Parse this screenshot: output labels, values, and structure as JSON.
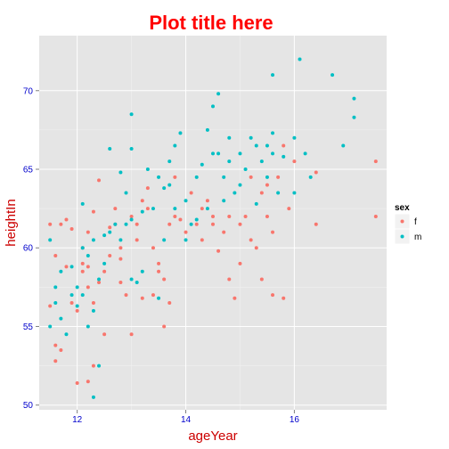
{
  "chart_data": {
    "type": "scatter",
    "title": "Plot title here",
    "xlabel": "ageYear",
    "ylabel": "heightIn",
    "xlim": [
      11.3,
      17.7
    ],
    "ylim": [
      49.7,
      73.5
    ],
    "x_ticks": [
      12,
      14,
      16
    ],
    "y_ticks": [
      50,
      55,
      60,
      65,
      70
    ],
    "x_tick_labels": [
      "12",
      "14",
      "16"
    ],
    "y_tick_labels": [
      "50",
      "55",
      "60",
      "65",
      "70"
    ],
    "grid": true,
    "legend": {
      "title": "sex",
      "position": "right"
    },
    "colors": {
      "f": "#F8766D",
      "m": "#00BFC4",
      "title": "#FF0000",
      "axis_title": "#CC0000",
      "tick_label": "#0000CC",
      "panel_bg": "#E5E5E5",
      "grid": "#FFFFFF"
    },
    "series": [
      {
        "name": "f",
        "points": [
          [
            11.5,
            56.3
          ],
          [
            11.6,
            53.8
          ],
          [
            11.7,
            53.5
          ],
          [
            11.6,
            52.8
          ],
          [
            11.5,
            61.5
          ],
          [
            11.7,
            61.5
          ],
          [
            11.8,
            61.8
          ],
          [
            11.9,
            61.2
          ],
          [
            11.6,
            59.5
          ],
          [
            11.8,
            58.8
          ],
          [
            11.9,
            56.5
          ],
          [
            12.0,
            56.0
          ],
          [
            12.0,
            51.4
          ],
          [
            12.1,
            59.0
          ],
          [
            12.1,
            58.5
          ],
          [
            12.2,
            58.8
          ],
          [
            12.2,
            57.5
          ],
          [
            12.3,
            56.5
          ],
          [
            12.2,
            51.5
          ],
          [
            12.3,
            52.5
          ],
          [
            12.2,
            61.0
          ],
          [
            12.3,
            62.3
          ],
          [
            12.4,
            64.3
          ],
          [
            12.1,
            60.0
          ],
          [
            12.4,
            57.8
          ],
          [
            12.5,
            58.5
          ],
          [
            12.5,
            54.5
          ],
          [
            12.6,
            59.5
          ],
          [
            12.6,
            61.3
          ],
          [
            12.7,
            62.5
          ],
          [
            12.7,
            61.5
          ],
          [
            12.8,
            60.0
          ],
          [
            12.8,
            59.3
          ],
          [
            12.8,
            57.8
          ],
          [
            12.9,
            57.0
          ],
          [
            13.0,
            54.5
          ],
          [
            13.0,
            62.0
          ],
          [
            13.1,
            61.5
          ],
          [
            13.1,
            60.5
          ],
          [
            13.2,
            63.0
          ],
          [
            13.3,
            62.5
          ],
          [
            13.3,
            63.8
          ],
          [
            13.2,
            56.8
          ],
          [
            13.4,
            60.0
          ],
          [
            13.4,
            57.0
          ],
          [
            13.5,
            59.0
          ],
          [
            13.5,
            58.5
          ],
          [
            13.6,
            58.0
          ],
          [
            13.6,
            55.0
          ],
          [
            13.7,
            56.5
          ],
          [
            13.7,
            61.5
          ],
          [
            13.8,
            62.0
          ],
          [
            13.8,
            64.5
          ],
          [
            13.9,
            61.8
          ],
          [
            14.0,
            61.0
          ],
          [
            14.1,
            63.5
          ],
          [
            14.2,
            61.5
          ],
          [
            14.3,
            62.5
          ],
          [
            14.3,
            60.5
          ],
          [
            14.4,
            63.0
          ],
          [
            14.5,
            61.5
          ],
          [
            14.5,
            62.0
          ],
          [
            14.6,
            59.8
          ],
          [
            14.7,
            61.0
          ],
          [
            14.8,
            62.0
          ],
          [
            14.8,
            58.0
          ],
          [
            14.9,
            56.8
          ],
          [
            15.0,
            61.5
          ],
          [
            15.0,
            59.0
          ],
          [
            15.1,
            62.0
          ],
          [
            15.2,
            60.5
          ],
          [
            15.2,
            64.5
          ],
          [
            15.3,
            60.0
          ],
          [
            15.4,
            58.0
          ],
          [
            15.4,
            63.5
          ],
          [
            15.5,
            62.0
          ],
          [
            15.5,
            64.0
          ],
          [
            15.6,
            61.0
          ],
          [
            15.6,
            57.0
          ],
          [
            15.7,
            64.5
          ],
          [
            15.8,
            66.5
          ],
          [
            15.8,
            56.8
          ],
          [
            15.9,
            62.5
          ],
          [
            16.0,
            65.5
          ],
          [
            16.4,
            61.5
          ],
          [
            16.4,
            64.8
          ],
          [
            17.5,
            65.5
          ],
          [
            17.5,
            62.0
          ]
        ]
      },
      {
        "name": "m",
        "points": [
          [
            11.5,
            60.5
          ],
          [
            11.5,
            55.0
          ],
          [
            11.6,
            57.5
          ],
          [
            11.6,
            56.5
          ],
          [
            11.7,
            58.5
          ],
          [
            11.7,
            55.5
          ],
          [
            11.8,
            54.5
          ],
          [
            11.9,
            58.8
          ],
          [
            11.9,
            57.0
          ],
          [
            12.0,
            56.3
          ],
          [
            12.0,
            57.5
          ],
          [
            12.1,
            60.0
          ],
          [
            12.1,
            62.8
          ],
          [
            12.1,
            57.0
          ],
          [
            12.2,
            55.0
          ],
          [
            12.2,
            59.5
          ],
          [
            12.3,
            60.5
          ],
          [
            12.3,
            56.0
          ],
          [
            12.3,
            50.5
          ],
          [
            12.4,
            52.5
          ],
          [
            12.4,
            58.0
          ],
          [
            12.5,
            59.0
          ],
          [
            12.5,
            60.8
          ],
          [
            12.6,
            61.0
          ],
          [
            12.6,
            66.3
          ],
          [
            12.7,
            61.5
          ],
          [
            12.8,
            64.8
          ],
          [
            12.8,
            60.5
          ],
          [
            12.9,
            63.5
          ],
          [
            12.9,
            61.5
          ],
          [
            13.0,
            68.5
          ],
          [
            13.0,
            61.8
          ],
          [
            13.0,
            58.0
          ],
          [
            13.0,
            66.3
          ],
          [
            13.1,
            57.8
          ],
          [
            13.2,
            62.3
          ],
          [
            13.2,
            58.5
          ],
          [
            13.3,
            65.0
          ],
          [
            13.4,
            62.5
          ],
          [
            13.5,
            64.5
          ],
          [
            13.5,
            56.8
          ],
          [
            13.6,
            63.8
          ],
          [
            13.6,
            60.5
          ],
          [
            13.7,
            65.5
          ],
          [
            13.7,
            64.0
          ],
          [
            13.8,
            66.5
          ],
          [
            13.8,
            62.5
          ],
          [
            13.9,
            67.3
          ],
          [
            14.0,
            63.0
          ],
          [
            14.0,
            60.5
          ],
          [
            14.1,
            61.5
          ],
          [
            14.2,
            64.5
          ],
          [
            14.2,
            61.8
          ],
          [
            14.3,
            65.3
          ],
          [
            14.4,
            67.5
          ],
          [
            14.4,
            62.5
          ],
          [
            14.5,
            69.0
          ],
          [
            14.5,
            66.0
          ],
          [
            14.6,
            69.8
          ],
          [
            14.6,
            66.0
          ],
          [
            14.7,
            64.5
          ],
          [
            14.7,
            63.0
          ],
          [
            14.8,
            65.5
          ],
          [
            14.8,
            67.0
          ],
          [
            14.9,
            63.5
          ],
          [
            15.0,
            66.0
          ],
          [
            15.0,
            64.0
          ],
          [
            15.1,
            65.0
          ],
          [
            15.2,
            67.0
          ],
          [
            15.3,
            66.5
          ],
          [
            15.3,
            62.8
          ],
          [
            15.4,
            65.5
          ],
          [
            15.5,
            66.5
          ],
          [
            15.5,
            64.5
          ],
          [
            15.6,
            66.0
          ],
          [
            15.6,
            67.3
          ],
          [
            15.7,
            63.5
          ],
          [
            15.8,
            65.8
          ],
          [
            16.0,
            67.0
          ],
          [
            16.0,
            63.5
          ],
          [
            16.1,
            72.0
          ],
          [
            16.2,
            66.0
          ],
          [
            16.3,
            64.5
          ],
          [
            16.7,
            71.0
          ],
          [
            16.9,
            66.5
          ],
          [
            17.1,
            69.5
          ],
          [
            17.1,
            68.3
          ],
          [
            15.6,
            71.0
          ]
        ]
      }
    ]
  }
}
